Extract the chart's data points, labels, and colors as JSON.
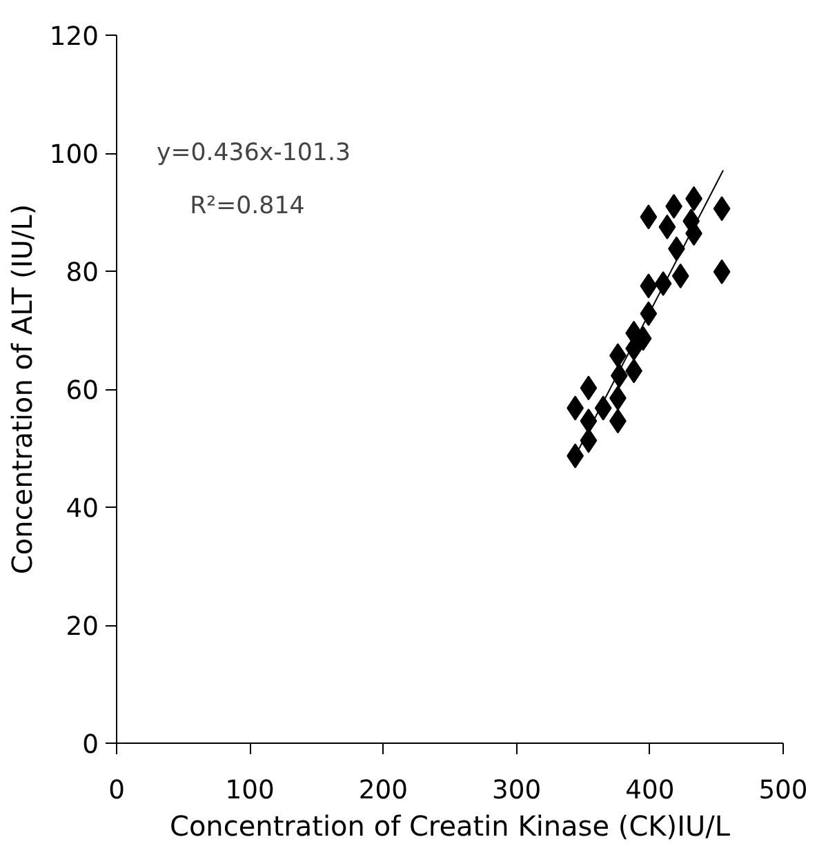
{
  "chart_data": {
    "type": "scatter",
    "xlabel": "Concentration of Creatin Kinase (CK)IU/L",
    "ylabel": "Concentration of ALT (IU/L)",
    "xlim": [
      0,
      500
    ],
    "xticks": [
      0,
      100,
      200,
      300,
      400,
      500
    ],
    "ylim": [
      0,
      120
    ],
    "yticks": [
      0,
      20,
      40,
      60,
      80,
      100,
      120
    ],
    "grid": false,
    "series": [
      {
        "color": "#000000",
        "marker": "diamond",
        "x": [
          399,
          418,
          433,
          454,
          413,
          431,
          433,
          420,
          423,
          454,
          410,
          399,
          399,
          395,
          388,
          388,
          376,
          388,
          377,
          376,
          354,
          365,
          344,
          354,
          376,
          354,
          344
        ],
        "values": [
          89.2,
          91.0,
          92.3,
          90.6,
          87.5,
          88.5,
          86.4,
          83.8,
          79.2,
          79.9,
          77.9,
          77.5,
          72.8,
          68.6,
          69.5,
          66.9,
          65.7,
          63.1,
          62.3,
          58.5,
          60.2,
          56.8,
          56.8,
          54.6,
          54.6,
          51.3,
          48.7
        ]
      },
      {
        "type": "line",
        "marker": "none",
        "color": "#000000",
        "x": [
          345,
          455
        ],
        "values": [
          49.1,
          97.1
        ]
      }
    ],
    "annotations": [
      "y=0.436x-101.3",
      "R²=0.814"
    ]
  }
}
